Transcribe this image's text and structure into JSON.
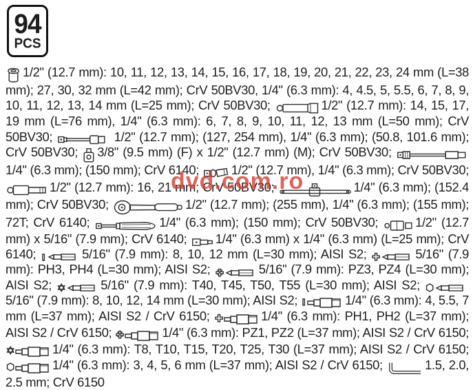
{
  "badge": {
    "count": "94",
    "unit": "PCS"
  },
  "watermark": {
    "text": "dvd.com.ro",
    "color": "rgba(213,61,49,0.80)"
  },
  "spec": {
    "segments": [
      {
        "icon": "socket-icon",
        "text": "1/2\" (12.7 mm): 10, 11, 12, 13, 14, 15, 16, 17, 18, 19, 20, 21, 22, 23, 24 mm (L=38 mm); 27, 30, 32 mm (L=42 mm); CrV 50BV30, 1/4\" (6.3 mm): 4, 4.5, 5, 5.5, 6, 7, 8, 9, 10, 11, 12, 13, 14 mm (L=25 mm); CrV 50BV30; "
      },
      {
        "icon": "deep-socket-icon",
        "text": "1/2\" (12.7 mm): 14, 15, 17, 19 mm (L=76 mm), 1/4\" (6.3 mm): 6, 7, 8, 9, 10, 11, 12, 13 mm (L=50 mm); CrV 50BV30; "
      },
      {
        "icon": "extension-bar-icon",
        "text": "1/2\" (12.7 mm); (127, 254 mm), 1/4\" (6.3 mm); (50.8, 101.6 mm); CrV 50BV30; "
      },
      {
        "icon": "adapter-icon",
        "text": "3/8\" (9.5 mm) (F) x 1/2\" (12.7 mm) (M); CrV 50BV30; "
      },
      {
        "icon": "flex-extension-icon",
        "text": "1/4\" (6.3 mm); (150 mm); CrV 6140; "
      },
      {
        "icon": "universal-joint-icon",
        "text": "1/2\" (12.7 mm), 1/4\" (6.3 mm); CrV 50BV30; "
      },
      {
        "icon": "spark-plug-socket-icon",
        "text": "1/2\" (12.7 mm): 16, 21 mm; CrV 50BV30; "
      },
      {
        "icon": "t-bar-icon",
        "text": "1/4\" (6.3 mm); (152.4 mm); CrV 50BV30; "
      },
      {
        "icon": "ratchet-icon",
        "text": "1/2\" (12.7 mm); (255 mm), 1/4\" (6.3 mm); (155 mm); 72T; CrV 6140; "
      },
      {
        "icon": "spinner-handle-icon",
        "text": "1/4\" (6.3 mm); (150 mm); CrV 50BV30; "
      },
      {
        "icon": "socket-adapter-icon",
        "text": "1/2\" (12.7 mm) x 5/16\" (7.9 mm); CrV 6140; "
      },
      {
        "icon": "bit-adapter-icon",
        "text": "1/4\" (6.3 mm) x 1/4\" (6.3 mm) (L=25 mm); CrV 6140; "
      },
      {
        "icon": "slotted-bit-icon",
        "text": "5/16\" (7.9 mm): 8, 10, 12 mm (L=30 mm); AISI S2; "
      },
      {
        "icon": "phillips-bit-icon",
        "text": "5/16\" (7.9 mm): PH3, PH4 (L=30 mm); AISI S2; "
      },
      {
        "icon": "pozidriv-bit-icon",
        "text": "5/16\" (7.9 mm): PZ3, PZ4 (L=30 mm); AISI S2; "
      },
      {
        "icon": "torx-bit-icon",
        "text": "5/16\" (7.9 mm): T40, T45, T50, T55 (L=30 mm); AISI S2; "
      },
      {
        "icon": "hex-bit-icon",
        "text": "5/16\" (7.9 mm): 8, 10, 12, 14 mm (L=30 mm); AISI S2; "
      },
      {
        "icon": "slotted-bit-socket-icon",
        "text": "1/4\" (6.3 mm): 4, 5.5, 7 mm (L=37 mm); AISI S2 / CrV 6150; "
      },
      {
        "icon": "phillips-bit-socket-icon",
        "text": "1/4\" (6.3 mm): PH1, PH2 (L=37 mm); AISI S2 / CrV 6150; "
      },
      {
        "icon": "pozidriv-bit-socket-icon",
        "text": "1/4\" (6.3 mm): PZ1, PZ2 (L=37 mm); AISI S2 / CrV 6150; "
      },
      {
        "icon": "torx-bit-socket-icon",
        "text": "1/4\" (6.3 mm): T8, T10, T15, T20, T25, T30 (L=37 mm); AISI S2 / CrV 6150; "
      },
      {
        "icon": "hex-bit-socket-icon",
        "text": "1/4\" (6.3 mm): 3, 4, 5, 6 mm (L=37 mm); AISI S2 / CrV 6150; "
      },
      {
        "icon": "hex-key-icon",
        "text": "1.5, 2.0, 2.5 mm; CrV 6150"
      }
    ]
  }
}
